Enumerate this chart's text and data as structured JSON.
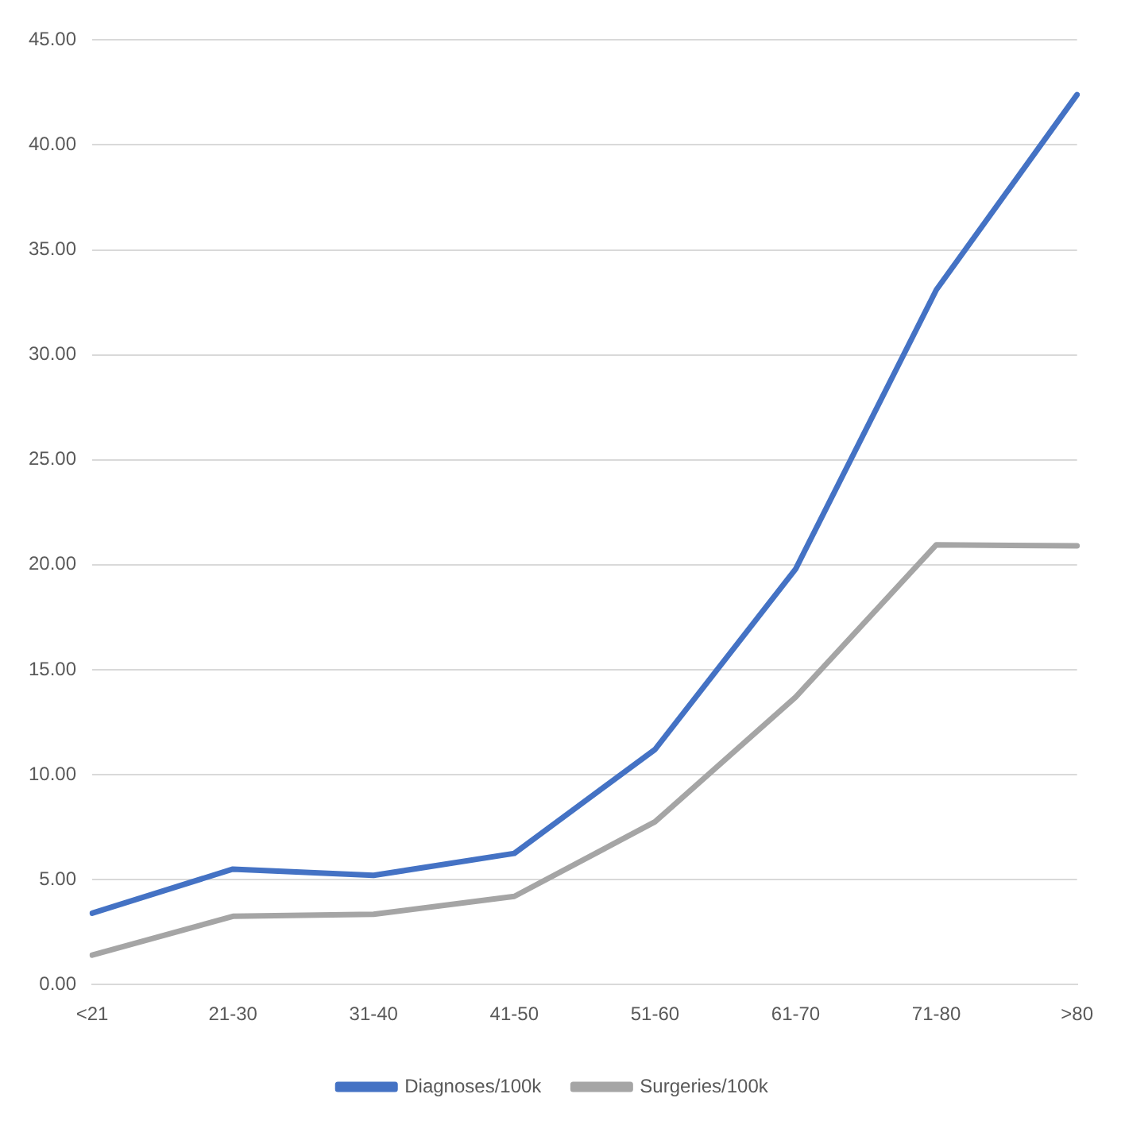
{
  "chart_data": {
    "type": "line",
    "categories": [
      "<21",
      "21-30",
      "31-40",
      "41-50",
      "51-60",
      "61-70",
      "71-80",
      ">80"
    ],
    "series": [
      {
        "name": "Diagnoses/100k",
        "color": "#4472c4",
        "values": [
          3.4,
          5.5,
          5.2,
          6.25,
          11.2,
          19.8,
          33.1,
          42.4
        ]
      },
      {
        "name": "Surgeries/100k",
        "color": "#a5a5a5",
        "values": [
          1.4,
          3.25,
          3.35,
          4.2,
          7.75,
          13.7,
          20.95,
          20.9
        ]
      }
    ],
    "ylim": [
      0,
      45
    ],
    "yticks": [
      {
        "value": 0,
        "label": "0.00"
      },
      {
        "value": 5,
        "label": "5.00"
      },
      {
        "value": 10,
        "label": "10.00"
      },
      {
        "value": 15,
        "label": "15.00"
      },
      {
        "value": 20,
        "label": "20.00"
      },
      {
        "value": 25,
        "label": "25.00"
      },
      {
        "value": 30,
        "label": "30.00"
      },
      {
        "value": 35,
        "label": "35.00"
      },
      {
        "value": 40,
        "label": "40.00"
      },
      {
        "value": 45,
        "label": "45.00"
      }
    ],
    "grid": "y",
    "legend": "bottom",
    "marker": "none",
    "line_style": "solid"
  }
}
